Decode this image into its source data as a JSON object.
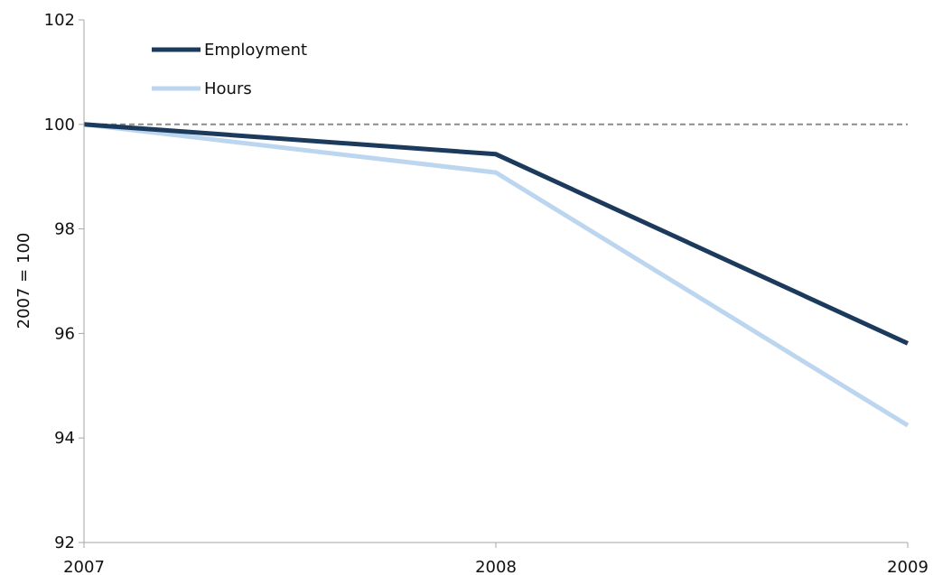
{
  "chart_data": {
    "type": "line",
    "title": "",
    "xlabel": "",
    "ylabel": "2007 = 100",
    "x": [
      "2007",
      "2008",
      "2009"
    ],
    "ylim": [
      92,
      102
    ],
    "yticks": [
      "92",
      "94",
      "96",
      "98",
      "100",
      "102"
    ],
    "grid": false,
    "legend": "top-left",
    "reference_line": {
      "y": 100,
      "style": "dashed",
      "color": "#8c8c8c"
    },
    "series": [
      {
        "name": "Employment",
        "color": "#1b3a5c",
        "values": [
          100,
          99.43,
          95.81
        ]
      },
      {
        "name": "Hours",
        "color": "#bcd6ef",
        "values": [
          100,
          99.08,
          94.24
        ]
      }
    ]
  }
}
